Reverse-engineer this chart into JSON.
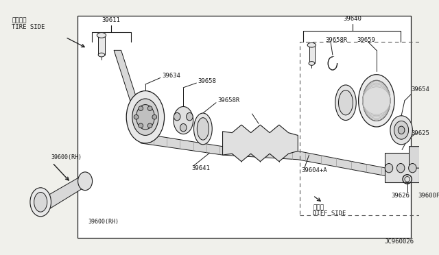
{
  "bg_color": "#f0f0eb",
  "box_bg": "#ffffff",
  "line_color": "#1a1a1a",
  "text_color": "#1a1a1a",
  "fig_width": 6.4,
  "fig_height": 3.72,
  "diagram_id": "JC960026",
  "tire_side_jp": "タイヤ側",
  "tire_side_en": "TIRE SIDE",
  "diff_side_jp": "デフ側",
  "diff_side_en": "DIFF SIDE"
}
